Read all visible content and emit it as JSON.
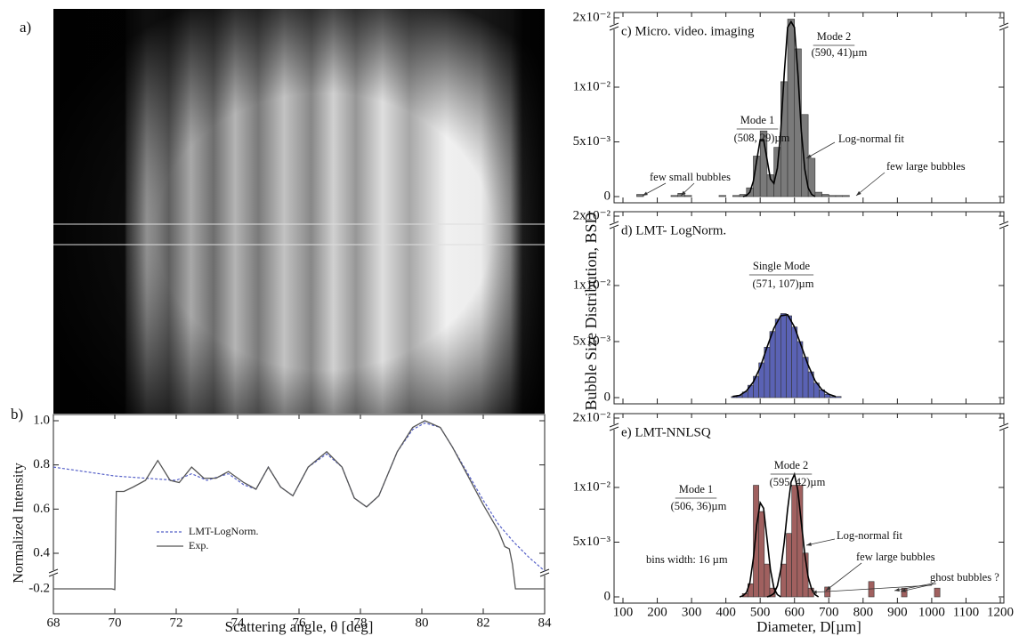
{
  "figure": {
    "image_label": "a)",
    "shared_y_label": "Bubble Size Distribution, BSD"
  },
  "chart_data": [
    {
      "type": "line",
      "panel_label": "b)",
      "x_label": "Scattering angle, θ [deg]",
      "y_label": "Normalized Intensity",
      "xlim": [
        68,
        84
      ],
      "xticks": [
        68,
        70,
        72,
        74,
        76,
        78,
        80,
        82,
        84
      ],
      "ylim": [
        -0.2,
        1.0
      ],
      "yticks": [
        -0.2,
        0.4,
        0.6,
        0.8,
        {
          "value": 1.0,
          "label": "1.0"
        }
      ],
      "y_break": "bottom",
      "series": [
        {
          "name": "LMT-LogNorm.",
          "color": "#5560c8",
          "dashed": true,
          "x": [
            68,
            69,
            70,
            71,
            72,
            72.5,
            73,
            73.7,
            74.2,
            74.6,
            75,
            75.4,
            75.8,
            76.3,
            76.9,
            77.4,
            77.8,
            78.2,
            78.6,
            79.2,
            79.7,
            80.1,
            80.6,
            81,
            81.5,
            82,
            82.5,
            83,
            83.5,
            84
          ],
          "values": [
            0.79,
            0.77,
            0.75,
            0.74,
            0.73,
            0.76,
            0.73,
            0.76,
            0.71,
            0.69,
            0.79,
            0.7,
            0.66,
            0.79,
            0.85,
            0.79,
            0.65,
            0.61,
            0.66,
            0.86,
            0.96,
            0.99,
            0.97,
            0.88,
            0.76,
            0.64,
            0.53,
            0.45,
            0.38,
            0.32
          ]
        },
        {
          "name": "Exp.",
          "color": "#555555",
          "dashed": false,
          "x": [
            68,
            69.9,
            70,
            70.05,
            70.3,
            70.6,
            71,
            71.4,
            71.8,
            72.1,
            72.5,
            72.9,
            73.3,
            73.7,
            74.2,
            74.6,
            75,
            75.4,
            75.8,
            76.3,
            76.9,
            77.4,
            77.8,
            78.2,
            78.6,
            79.2,
            79.7,
            80.1,
            80.6,
            81,
            81.5,
            82,
            82.5,
            82.7,
            82.85,
            82.95,
            83.05,
            84
          ],
          "values": [
            -0.2,
            -0.2,
            -0.22,
            0.68,
            0.68,
            0.7,
            0.73,
            0.82,
            0.73,
            0.72,
            0.79,
            0.74,
            0.74,
            0.77,
            0.72,
            0.69,
            0.79,
            0.7,
            0.66,
            0.79,
            0.86,
            0.79,
            0.65,
            0.61,
            0.66,
            0.86,
            0.97,
            1.0,
            0.97,
            0.88,
            0.75,
            0.62,
            0.5,
            0.43,
            0.42,
            0.35,
            -0.2,
            -0.2
          ]
        }
      ]
    },
    {
      "type": "histogram",
      "panel_label": "c) Micro. video. imaging",
      "show_x_tick_labels": false,
      "xlim": [
        100,
        1200
      ],
      "xticks": [
        100,
        200,
        300,
        400,
        500,
        600,
        700,
        800,
        900,
        1000,
        1100,
        1200
      ],
      "ylim": [
        0,
        0.02
      ],
      "yticks": [
        0,
        {
          "value": 0.005,
          "label": "5x10⁻³"
        },
        {
          "value": 0.01,
          "label": "1x10⁻²"
        },
        {
          "value": 0.02,
          "label": "2x10⁻²"
        }
      ],
      "y_break": "top",
      "color": "#7a7a7a",
      "bins": [
        100,
        120,
        140,
        160,
        180,
        200,
        220,
        240,
        260,
        280,
        300,
        320,
        340,
        360,
        380,
        400,
        420,
        440,
        460,
        480,
        500,
        520,
        540,
        560,
        580,
        600,
        620,
        640,
        660,
        680,
        700,
        720,
        740,
        760,
        780,
        800
      ],
      "values": [
        0,
        0,
        0.0002,
        0,
        0,
        0,
        0,
        0.0001,
        0.0003,
        0.0001,
        0,
        0,
        0,
        0,
        0.0001,
        0,
        0.0001,
        0.0002,
        0.0008,
        0.0037,
        0.006,
        0.002,
        0.0045,
        0.0105,
        0.0195,
        0.0135,
        0.0075,
        0.0035,
        0.0004,
        0.0002,
        0.0001,
        0.0001,
        0.0001,
        0,
        0
      ],
      "fits": [
        {
          "color": "#000000",
          "x": [
            450,
            460,
            470,
            480,
            490,
            500,
            510,
            520,
            530,
            540,
            550,
            560,
            570,
            580,
            590,
            600,
            610,
            620,
            630,
            640,
            650,
            660
          ],
          "values": [
            0,
            0.0001,
            0.0004,
            0.0014,
            0.0033,
            0.0052,
            0.0052,
            0.0034,
            0.0016,
            0.0012,
            0.0026,
            0.006,
            0.0112,
            0.0163,
            0.0185,
            0.0163,
            0.0112,
            0.006,
            0.0025,
            0.0008,
            0.0002,
            0
          ]
        }
      ],
      "annotations": [
        "Mode 2",
        "(590, 41)µm",
        "Mode 1",
        "(508, 29)µm",
        "Log-normal fit",
        "few small bubbles",
        "few large bubbles"
      ]
    },
    {
      "type": "histogram",
      "panel_label": "d) LMT- LogNorm.",
      "show_x_tick_labels": false,
      "xlim": [
        100,
        1200
      ],
      "xticks": [
        100,
        200,
        300,
        400,
        500,
        600,
        700,
        800,
        900,
        1000,
        1100,
        1200
      ],
      "ylim": [
        0,
        0.02
      ],
      "yticks": [
        0,
        {
          "value": 0.005,
          "label": "5x10⁻³"
        },
        {
          "value": 0.01,
          "label": "1x10⁻²"
        },
        {
          "value": 0.02,
          "label": "2x10⁻²"
        }
      ],
      "y_break": "top",
      "color": "#5a62b4",
      "bins": [
        400,
        416,
        432,
        448,
        464,
        480,
        496,
        512,
        528,
        544,
        560,
        576,
        592,
        608,
        624,
        640,
        656,
        672,
        688,
        704,
        720,
        736,
        752
      ],
      "values": [
        0,
        0.0001,
        0.0002,
        0.0005,
        0.0011,
        0.0019,
        0.0031,
        0.0045,
        0.0059,
        0.007,
        0.0075,
        0.0073,
        0.0063,
        0.005,
        0.0036,
        0.0023,
        0.0013,
        0.0007,
        0.0003,
        0.0001,
        0.0001,
        0
      ],
      "fits": [
        {
          "color": "#000000",
          "x": [
            420,
            440,
            460,
            480,
            500,
            520,
            540,
            560,
            580,
            600,
            620,
            640,
            660,
            680,
            700,
            720
          ],
          "values": [
            0.0001,
            0.0002,
            0.0006,
            0.0014,
            0.0027,
            0.0045,
            0.0062,
            0.0073,
            0.0074,
            0.0063,
            0.0046,
            0.0029,
            0.0015,
            0.0007,
            0.0003,
            0.0001
          ]
        }
      ],
      "annotations": [
        "Single Mode",
        "(571, 107)µm"
      ]
    },
    {
      "type": "histogram",
      "panel_label": "e) LMT-NNLSQ",
      "show_x_tick_labels": true,
      "x_label": "Diameter, D[µm]",
      "xlim": [
        100,
        1200
      ],
      "xticks": [
        100,
        200,
        300,
        400,
        500,
        600,
        700,
        800,
        900,
        1000,
        1100,
        1200
      ],
      "ylim": [
        0,
        0.02
      ],
      "yticks": [
        0,
        {
          "value": 0.005,
          "label": "5x10⁻³"
        },
        {
          "value": 0.01,
          "label": "1x10⁻²"
        },
        {
          "value": 0.02,
          "label": "2x10⁻²"
        }
      ],
      "y_break": "top",
      "color": "#a0605f",
      "bins": [
        448,
        464,
        480,
        496,
        512,
        528,
        544,
        560,
        576,
        592,
        608,
        624,
        640,
        656,
        672,
        688,
        704,
        720,
        736,
        752,
        768,
        784,
        800,
        816,
        832,
        848,
        864,
        880,
        896,
        912,
        928,
        944,
        960,
        976,
        992,
        1008,
        1024
      ],
      "values": [
        0.0003,
        0.0012,
        0.0102,
        0.0078,
        0.003,
        0.0008,
        0,
        0.003,
        0.0058,
        0.0102,
        0.0102,
        0.004,
        0.0008,
        0,
        0,
        0.0009,
        0,
        0,
        0,
        0,
        0,
        0,
        0,
        0.0014,
        0,
        0,
        0,
        0,
        0,
        0.0008,
        0,
        0,
        0,
        0,
        0,
        0.0008
      ],
      "fits": [
        {
          "color": "#000000",
          "x": [
            440,
            450,
            460,
            470,
            480,
            490,
            500,
            510,
            520,
            530,
            540,
            550,
            560
          ],
          "values": [
            0,
            0.0001,
            0.0004,
            0.0013,
            0.0035,
            0.0066,
            0.0086,
            0.0081,
            0.0053,
            0.0025,
            0.0008,
            0.0002,
            0
          ]
        },
        {
          "color": "#000000",
          "x": [
            520,
            530,
            540,
            550,
            560,
            570,
            580,
            590,
            600,
            610,
            620,
            630,
            640,
            650,
            660,
            670
          ],
          "values": [
            0,
            0.0001,
            0.0003,
            0.001,
            0.0025,
            0.005,
            0.008,
            0.0105,
            0.0112,
            0.0097,
            0.0068,
            0.0039,
            0.0018,
            0.0007,
            0.0002,
            0
          ]
        }
      ],
      "annotations": [
        "Mode 2",
        "(595, 42)µm",
        "Mode 1",
        "(506, 36)µm",
        "Log-normal fit",
        "bins width: 16 µm",
        "few large bubbles",
        "ghost bubbles ?"
      ]
    }
  ]
}
